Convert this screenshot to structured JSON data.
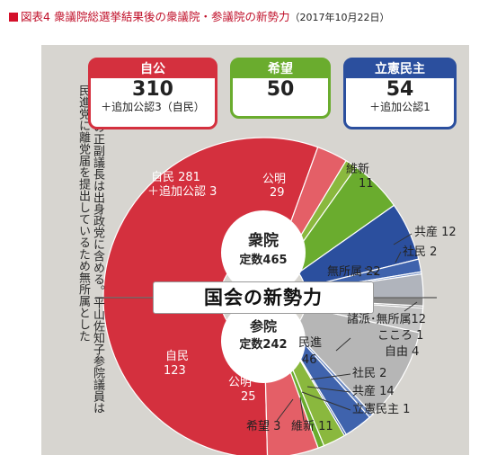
{
  "figure": {
    "title_prefix": "図表4",
    "title_main": "衆議院総選挙結果後の衆議院・参議院の新勢力",
    "title_date": "（2017年10月22日）",
    "banner": "国会の新勢力",
    "note_lines": [
      "※参院の正副議長は出身政党に含める。平山佐知子参院議員は",
      "民進党に離党届を提出しているため無所属とした"
    ]
  },
  "summary_boxes": [
    {
      "name": "自公",
      "total": "310",
      "note": "＋追加公認3（自民）",
      "color": "#d4303e"
    },
    {
      "name": "希望",
      "total": "50",
      "note": "",
      "color": "#6aac2e"
    },
    {
      "name": "立憲民主",
      "total": "54",
      "note": "＋追加公認1",
      "color": "#2b4f9e"
    }
  ],
  "colors": {
    "ldp": "#d4303e",
    "komeito": "#e45f67",
    "kibo": "#6aac2e",
    "ishin": "#8ab83e",
    "cdp": "#2b4f9e",
    "jcp": "#3f63ad",
    "sdp": "#6f8cc4",
    "independent": "#b0b4bc",
    "minshin": "#b6b6b6",
    "kokoro": "#9a9a9a",
    "paper": "#d7d5d0"
  },
  "chart_data": [
    {
      "type": "pie",
      "title": "衆院",
      "subtitle": "定数465",
      "slices": [
        {
          "party": "自民",
          "label": "自民 281",
          "label2": "＋追加公認 3",
          "value": 284
        },
        {
          "party": "公明",
          "label": "公明",
          "label2": "29",
          "value": 29
        },
        {
          "party": "維新",
          "label": "維新",
          "label2": "11",
          "value": 11
        },
        {
          "party": "希望",
          "label": "",
          "label2": "",
          "value": 50
        },
        {
          "party": "立憲民主",
          "label": "",
          "label2": "",
          "value": 55
        },
        {
          "party": "共産",
          "label": "共産 12",
          "label2": "",
          "value": 12
        },
        {
          "party": "社民",
          "label": "社民 2",
          "label2": "",
          "value": 2
        },
        {
          "party": "無所属",
          "label": "無所属 22",
          "label2": "",
          "value": 22
        }
      ]
    },
    {
      "type": "pie",
      "title": "参院",
      "subtitle": "定数242",
      "slices": [
        {
          "party": "自民",
          "label": "自民",
          "label2": "123",
          "value": 123
        },
        {
          "party": "公明",
          "label": "公明",
          "label2": "25",
          "value": 25
        },
        {
          "party": "希望",
          "label": "希望 3",
          "label2": "",
          "value": 3
        },
        {
          "party": "維新",
          "label": "維新 11",
          "label2": "",
          "value": 11
        },
        {
          "party": "立憲民主",
          "label": "立憲民主 1",
          "label2": "",
          "value": 1
        },
        {
          "party": "共産",
          "label": "共産 14",
          "label2": "",
          "value": 14
        },
        {
          "party": "社民",
          "label": "社民 2",
          "label2": "",
          "value": 2
        },
        {
          "party": "民進",
          "label": "民進",
          "label2": "46",
          "value": 46
        },
        {
          "party": "諸派・無所属",
          "label": "諸派･無所属12",
          "label2": "",
          "value": 12
        },
        {
          "party": "こころ",
          "label": "こころ 1",
          "label2": "",
          "value": 1
        },
        {
          "party": "自由",
          "label": "自由 4",
          "label2": "",
          "value": 4
        }
      ]
    }
  ]
}
